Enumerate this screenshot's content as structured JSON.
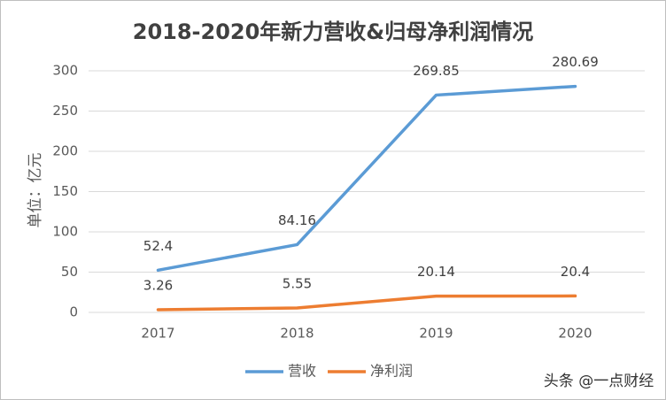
{
  "chart_data": {
    "type": "line",
    "title": "2018-2020年新力营收&归母净利润情况",
    "y_label": "单位：亿元",
    "categories": [
      "2017",
      "2018",
      "2019",
      "2020"
    ],
    "series": [
      {
        "name": "营收",
        "color": "#5b9bd5",
        "values": [
          52.4,
          84.16,
          269.85,
          280.69
        ]
      },
      {
        "name": "净利润",
        "color": "#ed7d31",
        "values": [
          3.26,
          5.55,
          20.14,
          20.4
        ]
      }
    ],
    "ylim": [
      0,
      300
    ],
    "yticks": [
      0,
      50,
      100,
      150,
      200,
      250,
      300
    ],
    "grid": true,
    "legend": "bottom",
    "watermark": "头条 @一点财经"
  }
}
